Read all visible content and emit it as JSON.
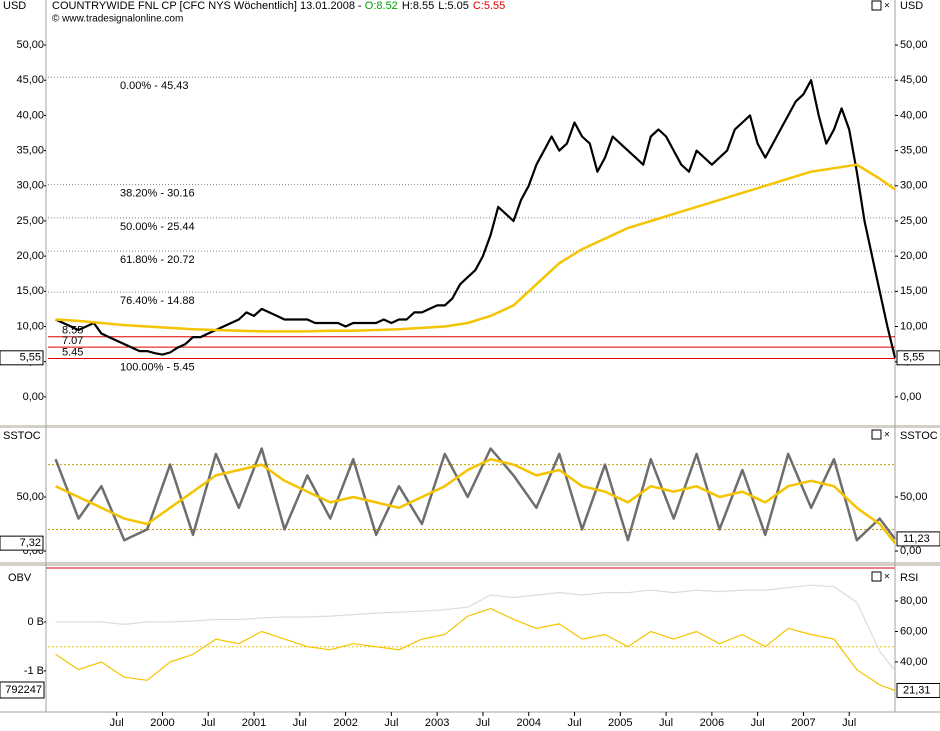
{
  "chart_data": [
    {
      "type": "line",
      "title": "COUNTRYWIDE FNL CP [CFC NYS  Wöchentlich] 13.01.2008 - ",
      "ohlc": [
        {
          "label": "O:8.52",
          "color": "#00a000"
        },
        {
          "label": "H:8.55",
          "color": "#000000"
        },
        {
          "label": "L:5.05",
          "color": "#000000"
        },
        {
          "label": "C:5.55",
          "color": "#e00000"
        }
      ],
      "subtitle": "© www.tradesignalonline.com",
      "y_axis_label": "USD",
      "xlim": [
        "1998-10",
        "2008-01"
      ],
      "ylim": [
        -4,
        54.7
      ],
      "yticks": [
        {
          "value": 0,
          "label": "0,00"
        },
        {
          "value": 5,
          "label": "5,00"
        },
        {
          "value": 10,
          "label": "10,00"
        },
        {
          "value": 15,
          "label": "15,00"
        },
        {
          "value": 20,
          "label": "20,00"
        },
        {
          "value": 25,
          "label": "25,00"
        },
        {
          "value": 30,
          "label": "30,00"
        },
        {
          "value": 35,
          "label": "35,00"
        },
        {
          "value": 40,
          "label": "40,00"
        },
        {
          "value": 45,
          "label": "45,00"
        },
        {
          "value": 50,
          "label": "50,00"
        }
      ],
      "fib_levels": [
        {
          "value": 45.43,
          "label": "0.00% - 45.43"
        },
        {
          "value": 30.16,
          "label": "38.20% - 30.16"
        },
        {
          "value": 25.44,
          "label": "50.00% - 25.44"
        },
        {
          "value": 20.72,
          "label": "61.80% - 20.72"
        },
        {
          "value": 14.88,
          "label": "76.40% - 14.88"
        },
        {
          "value": 5.45,
          "label": "100.00% - 5.45"
        }
      ],
      "levels": {
        "color": "#e00000",
        "values": [
          8.55,
          7.07,
          5.45
        ]
      },
      "last_value": {
        "value": 5.55,
        "label": "5,55"
      },
      "series": [
        {
          "color": "#000000",
          "width": 2.2,
          "x": [
            "1998-11",
            "1998-12",
            "1999-01",
            "1999-02",
            "1999-03",
            "1999-04",
            "1999-05",
            "1999-06",
            "1999-07",
            "1999-08",
            "1999-09",
            "1999-10",
            "1999-11",
            "1999-12",
            "2000-01",
            "2000-02",
            "2000-03",
            "2000-04",
            "2000-05",
            "2000-06",
            "2000-07",
            "2000-08",
            "2000-09",
            "2000-10",
            "2000-11",
            "2000-12",
            "2001-01",
            "2001-02",
            "2001-03",
            "2001-04",
            "2001-05",
            "2001-06",
            "2001-07",
            "2001-08",
            "2001-09",
            "2001-10",
            "2001-11",
            "2001-12",
            "2002-01",
            "2002-02",
            "2002-03",
            "2002-04",
            "2002-05",
            "2002-06",
            "2002-07",
            "2002-08",
            "2002-09",
            "2002-10",
            "2002-11",
            "2002-12",
            "2003-01",
            "2003-02",
            "2003-03",
            "2003-04",
            "2003-05",
            "2003-06",
            "2003-07",
            "2003-08",
            "2003-09",
            "2003-10",
            "2003-11",
            "2003-12",
            "2004-01",
            "2004-02",
            "2004-03",
            "2004-04",
            "2004-05",
            "2004-06",
            "2004-07",
            "2004-08",
            "2004-09",
            "2004-10",
            "2004-11",
            "2004-12",
            "2005-01",
            "2005-02",
            "2005-03",
            "2005-04",
            "2005-05",
            "2005-06",
            "2005-07",
            "2005-08",
            "2005-09",
            "2005-10",
            "2005-11",
            "2005-12",
            "2006-01",
            "2006-02",
            "2006-03",
            "2006-04",
            "2006-05",
            "2006-06",
            "2006-07",
            "2006-08",
            "2006-09",
            "2006-10",
            "2006-11",
            "2006-12",
            "2007-01",
            "2007-02",
            "2007-03",
            "2007-04",
            "2007-05",
            "2007-06",
            "2007-07",
            "2007-08",
            "2007-09",
            "2007-10",
            "2007-11",
            "2007-12",
            "2008-01"
          ],
          "values": [
            11,
            10.5,
            10,
            9.5,
            10,
            10.5,
            9,
            8.5,
            8,
            7.5,
            7,
            6.5,
            6.5,
            6.2,
            6,
            6.3,
            7,
            7.5,
            8.5,
            8.5,
            9,
            9.5,
            10,
            10.5,
            11,
            12,
            11.5,
            12.5,
            12,
            11.5,
            11,
            11,
            11,
            11,
            10.5,
            10.5,
            10.5,
            10.5,
            10,
            10.5,
            10.5,
            10.5,
            10.5,
            11,
            10.5,
            11,
            11,
            12,
            12,
            12.5,
            13,
            13,
            14,
            16,
            17,
            18,
            20,
            23,
            27,
            26,
            25,
            28,
            30,
            33,
            35,
            37,
            35,
            36,
            39,
            37,
            36,
            32,
            34,
            37,
            36,
            35,
            34,
            33,
            37,
            38,
            37,
            35,
            33,
            32,
            35,
            34,
            33,
            34,
            35,
            38,
            39,
            40,
            36,
            34,
            36,
            38,
            40,
            42,
            43,
            45,
            40,
            36,
            38,
            41,
            38,
            32,
            25,
            20,
            15,
            10,
            5.55
          ]
        },
        {
          "color": "#f5c400",
          "width": 2.5,
          "x": [
            "1998-11",
            "1999-02",
            "1999-05",
            "1999-08",
            "1999-11",
            "2000-02",
            "2000-05",
            "2000-08",
            "2000-11",
            "2001-02",
            "2001-05",
            "2001-08",
            "2001-11",
            "2002-02",
            "2002-05",
            "2002-08",
            "2002-11",
            "2003-02",
            "2003-05",
            "2003-08",
            "2003-11",
            "2004-02",
            "2004-05",
            "2004-08",
            "2004-11",
            "2005-02",
            "2005-05",
            "2005-08",
            "2005-11",
            "2006-02",
            "2006-05",
            "2006-08",
            "2006-11",
            "2007-02",
            "2007-05",
            "2007-08",
            "2007-11",
            "2008-01"
          ],
          "values": [
            11,
            10.8,
            10.5,
            10.2,
            10,
            9.8,
            9.6,
            9.5,
            9.4,
            9.3,
            9.3,
            9.3,
            9.4,
            9.4,
            9.5,
            9.6,
            9.8,
            10,
            10.5,
            11.5,
            13,
            16,
            19,
            21,
            22.5,
            24,
            25,
            26,
            27,
            28,
            29,
            30,
            31,
            32,
            32.5,
            33,
            31,
            29.5
          ]
        }
      ]
    },
    {
      "type": "line",
      "y_axis_label": "SSTOC",
      "xlim": [
        "1998-10",
        "2008-01"
      ],
      "ylim": [
        -8.3,
        101.9
      ],
      "yticks": [
        {
          "value": 0,
          "label": "0,00"
        },
        {
          "value": 50,
          "label": "50,00"
        }
      ],
      "levels": {
        "color": "#c8a000",
        "values": [
          80,
          20
        ]
      },
      "tags": [
        {
          "value": 7.32,
          "label": "7,32",
          "side": "left"
        },
        {
          "value": 11.23,
          "label": "11,23",
          "side": "right"
        }
      ],
      "series": [
        {
          "color": "#6e6e6e",
          "width": 2.5,
          "x": [
            "1998-11",
            "1999-02",
            "1999-05",
            "1999-08",
            "1999-11",
            "2000-02",
            "2000-05",
            "2000-08",
            "2000-11",
            "2001-02",
            "2001-05",
            "2001-08",
            "2001-11",
            "2002-02",
            "2002-05",
            "2002-08",
            "2002-11",
            "2003-02",
            "2003-05",
            "2003-08",
            "2003-11",
            "2004-02",
            "2004-05",
            "2004-08",
            "2004-11",
            "2005-02",
            "2005-05",
            "2005-08",
            "2005-11",
            "2006-02",
            "2006-05",
            "2006-08",
            "2006-11",
            "2007-02",
            "2007-05",
            "2007-08",
            "2007-11",
            "2008-01"
          ],
          "values": [
            85,
            30,
            60,
            10,
            20,
            80,
            15,
            90,
            40,
            95,
            20,
            70,
            30,
            85,
            15,
            60,
            25,
            90,
            50,
            95,
            70,
            40,
            90,
            20,
            80,
            10,
            85,
            30,
            90,
            20,
            75,
            15,
            90,
            40,
            85,
            10,
            30,
            11.23
          ]
        },
        {
          "color": "#f5c400",
          "width": 2.5,
          "x": [
            "1998-11",
            "1999-02",
            "1999-05",
            "1999-08",
            "1999-11",
            "2000-02",
            "2000-05",
            "2000-08",
            "2000-11",
            "2001-02",
            "2001-05",
            "2001-08",
            "2001-11",
            "2002-02",
            "2002-05",
            "2002-08",
            "2002-11",
            "2003-02",
            "2003-05",
            "2003-08",
            "2003-11",
            "2004-02",
            "2004-05",
            "2004-08",
            "2004-11",
            "2005-02",
            "2005-05",
            "2005-08",
            "2005-11",
            "2006-02",
            "2006-05",
            "2006-08",
            "2006-11",
            "2007-02",
            "2007-05",
            "2007-08",
            "2007-11",
            "2008-01"
          ],
          "values": [
            60,
            50,
            40,
            30,
            25,
            40,
            55,
            70,
            75,
            80,
            65,
            55,
            45,
            50,
            45,
            40,
            50,
            60,
            75,
            85,
            80,
            70,
            75,
            60,
            55,
            45,
            60,
            55,
            60,
            50,
            55,
            45,
            60,
            65,
            60,
            40,
            25,
            7.32
          ]
        }
      ]
    },
    {
      "type": "line",
      "y_axis_label": "OBV",
      "y2_axis_label": "RSI",
      "xlim": [
        "1998-10",
        "2008-01"
      ],
      "ylim": [
        -1.84,
        1.02
      ],
      "yticks": [
        {
          "value": 0,
          "label": "0 B"
        },
        {
          "value": -1,
          "label": "-1 B"
        }
      ],
      "y2lim": [
        7.2,
        99
      ],
      "y2ticks": [
        {
          "value": 40,
          "label": "40,00"
        },
        {
          "value": 60,
          "label": "60,00"
        },
        {
          "value": 80,
          "label": "80,00"
        }
      ],
      "y2_levels": {
        "color": "#f5c400",
        "values": [
          50
        ]
      },
      "obv_tag": "792247",
      "tags": [
        {
          "value": 21.31,
          "label": "21,31",
          "side": "right",
          "axis": "y2"
        }
      ],
      "xticks": [
        {
          "value": "1999-07",
          "label": "Jul"
        },
        {
          "value": "2000-01",
          "label": "2000"
        },
        {
          "value": "2000-07",
          "label": "Jul"
        },
        {
          "value": "2001-01",
          "label": "2001"
        },
        {
          "value": "2001-07",
          "label": "Jul"
        },
        {
          "value": "2002-01",
          "label": "2002"
        },
        {
          "value": "2002-07",
          "label": "Jul"
        },
        {
          "value": "2003-01",
          "label": "2003"
        },
        {
          "value": "2003-07",
          "label": "Jul"
        },
        {
          "value": "2004-01",
          "label": "2004"
        },
        {
          "value": "2004-07",
          "label": "Jul"
        },
        {
          "value": "2005-01",
          "label": "2005"
        },
        {
          "value": "2005-07",
          "label": "Jul"
        },
        {
          "value": "2006-01",
          "label": "2006"
        },
        {
          "value": "2006-07",
          "label": "Jul"
        },
        {
          "value": "2007-01",
          "label": "2007"
        },
        {
          "value": "2007-07",
          "label": "Jul"
        }
      ],
      "series": [
        {
          "color": "#dcdcdc",
          "width": 1.2,
          "x": [
            "1998-11",
            "1999-02",
            "1999-05",
            "1999-08",
            "1999-11",
            "2000-02",
            "2000-05",
            "2000-08",
            "2000-11",
            "2001-02",
            "2001-05",
            "2001-08",
            "2001-11",
            "2002-02",
            "2002-05",
            "2002-08",
            "2002-11",
            "2003-02",
            "2003-05",
            "2003-08",
            "2003-11",
            "2004-02",
            "2004-05",
            "2004-08",
            "2004-11",
            "2005-02",
            "2005-05",
            "2005-08",
            "2005-11",
            "2006-02",
            "2006-05",
            "2006-08",
            "2006-11",
            "2007-02",
            "2007-05",
            "2007-08",
            "2007-11",
            "2008-01"
          ],
          "values": [
            0,
            0,
            0,
            -0.05,
            0,
            0,
            0.02,
            0.05,
            0.05,
            0.08,
            0.1,
            0.1,
            0.12,
            0.15,
            0.18,
            0.2,
            0.22,
            0.25,
            0.3,
            0.55,
            0.5,
            0.55,
            0.6,
            0.55,
            0.6,
            0.6,
            0.65,
            0.6,
            0.65,
            0.62,
            0.65,
            0.65,
            0.7,
            0.75,
            0.72,
            0.4,
            -0.6,
            -1.0
          ]
        },
        {
          "color": "#f5c400",
          "width": 1.2,
          "axis": "y2",
          "x": [
            "1998-11",
            "1999-02",
            "1999-05",
            "1999-08",
            "1999-11",
            "2000-02",
            "2000-05",
            "2000-08",
            "2000-11",
            "2001-02",
            "2001-05",
            "2001-08",
            "2001-11",
            "2002-02",
            "2002-05",
            "2002-08",
            "2002-11",
            "2003-02",
            "2003-05",
            "2003-08",
            "2003-11",
            "2004-02",
            "2004-05",
            "2004-08",
            "2004-11",
            "2005-02",
            "2005-05",
            "2005-08",
            "2005-11",
            "2006-02",
            "2006-05",
            "2006-08",
            "2006-11",
            "2007-02",
            "2007-05",
            "2007-08",
            "2007-11",
            "2008-01"
          ],
          "values": [
            45,
            35,
            40,
            30,
            28,
            40,
            45,
            55,
            52,
            60,
            55,
            50,
            48,
            52,
            50,
            48,
            55,
            58,
            70,
            75,
            68,
            62,
            65,
            55,
            58,
            50,
            60,
            55,
            60,
            52,
            58,
            50,
            62,
            58,
            55,
            35,
            25,
            21.31
          ]
        }
      ]
    }
  ]
}
